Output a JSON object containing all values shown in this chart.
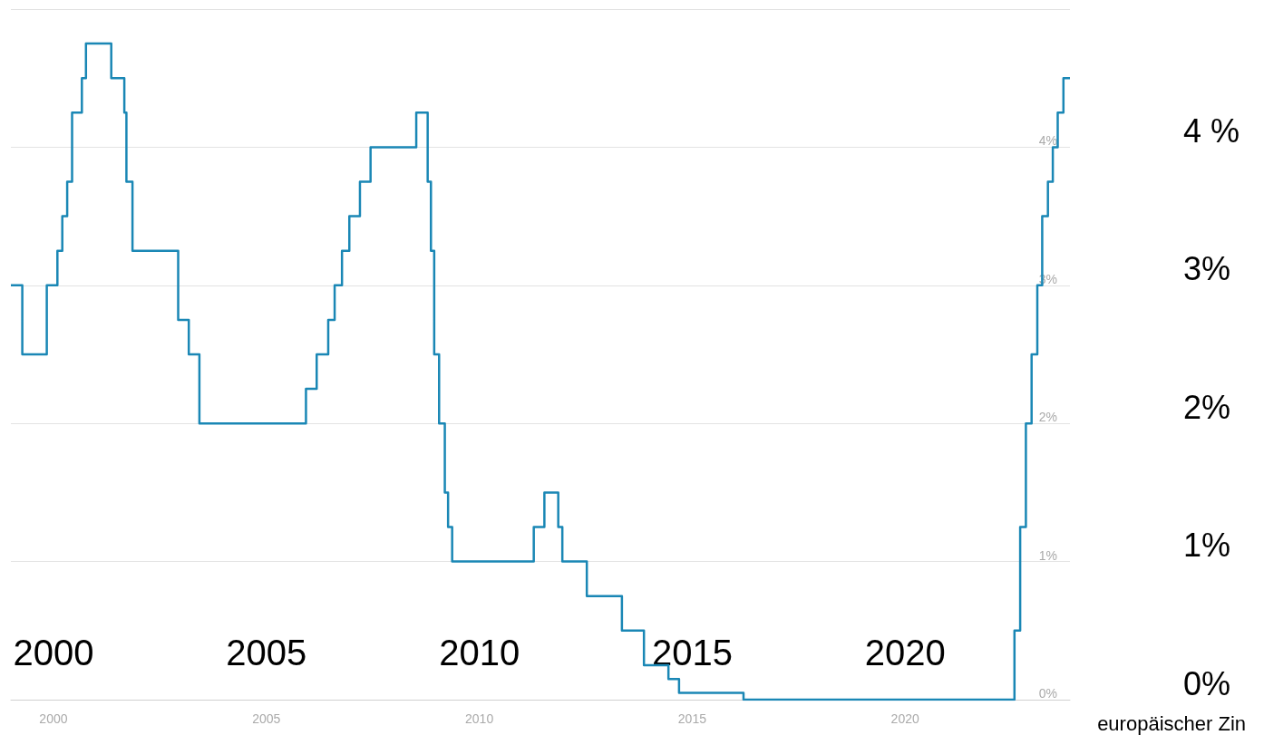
{
  "chart_data": {
    "type": "step",
    "x": [
      "1999-01-01",
      "1999-04-09",
      "1999-11-05",
      "2000-02-04",
      "2000-03-17",
      "2000-04-28",
      "2000-06-09",
      "2000-09-01",
      "2000-10-06",
      "2001-05-11",
      "2001-08-31",
      "2001-09-18",
      "2001-11-09",
      "2002-12-06",
      "2003-03-07",
      "2003-06-06",
      "2005-12-06",
      "2006-03-08",
      "2006-06-15",
      "2006-08-09",
      "2006-10-11",
      "2006-12-13",
      "2007-03-14",
      "2007-06-13",
      "2008-07-09",
      "2008-10-15",
      "2008-11-12",
      "2008-12-10",
      "2009-01-21",
      "2009-03-11",
      "2009-04-08",
      "2009-05-13",
      "2011-04-13",
      "2011-07-13",
      "2011-11-09",
      "2011-12-14",
      "2012-07-11",
      "2013-05-08",
      "2013-11-13",
      "2014-06-11",
      "2014-09-10",
      "2016-03-16",
      "2022-07-27",
      "2022-09-14",
      "2022-11-02",
      "2022-12-21",
      "2023-02-08",
      "2023-03-22",
      "2023-05-10",
      "2023-06-21",
      "2023-08-02",
      "2023-09-20",
      "2023-11-15"
    ],
    "series": [
      {
        "color": "#1a87b5",
        "values": [
          3.0,
          2.5,
          3.0,
          3.25,
          3.5,
          3.75,
          4.25,
          4.5,
          4.75,
          4.5,
          4.25,
          3.75,
          3.25,
          2.75,
          2.5,
          2.0,
          2.25,
          2.5,
          2.75,
          3.0,
          3.25,
          3.5,
          3.75,
          4.0,
          4.25,
          3.75,
          3.25,
          2.5,
          2.0,
          1.5,
          1.25,
          1.0,
          1.25,
          1.5,
          1.25,
          1.0,
          0.75,
          0.5,
          0.25,
          0.15,
          0.05,
          0.0,
          0.5,
          1.25,
          2.0,
          2.5,
          3.0,
          3.5,
          3.75,
          4.0,
          4.25,
          4.5,
          4.5
        ]
      }
    ],
    "xlim": [
      "1999-01-01",
      "2023-11-15"
    ],
    "xticks": [
      "2000",
      "2005",
      "2010",
      "2015",
      "2020"
    ],
    "x2lim": [
      "1999-01-01",
      "2023-11-15"
    ],
    "x2ticks": [
      "2000",
      "2005",
      "2010",
      "2015",
      "2020"
    ],
    "ylim": [
      0,
      5
    ],
    "yticks": [
      {
        "value": 0,
        "label": "0%"
      },
      {
        "value": 1,
        "label": "1%"
      },
      {
        "value": 2,
        "label": "2%"
      },
      {
        "value": 3,
        "label": "3%"
      },
      {
        "value": 4,
        "label": "4%"
      },
      {
        "value": 5,
        "label": null
      }
    ],
    "y2lim": [
      0,
      5
    ],
    "y2ticks": [
      {
        "value": 0,
        "label": "0%"
      },
      {
        "value": 1,
        "label": "1%"
      },
      {
        "value": 2,
        "label": "2%"
      },
      {
        "value": 3,
        "label": "3%"
      },
      {
        "value": 4,
        "label": "4 %"
      }
    ],
    "grid": "y",
    "annotations": [
      "europäischer Zin"
    ]
  }
}
